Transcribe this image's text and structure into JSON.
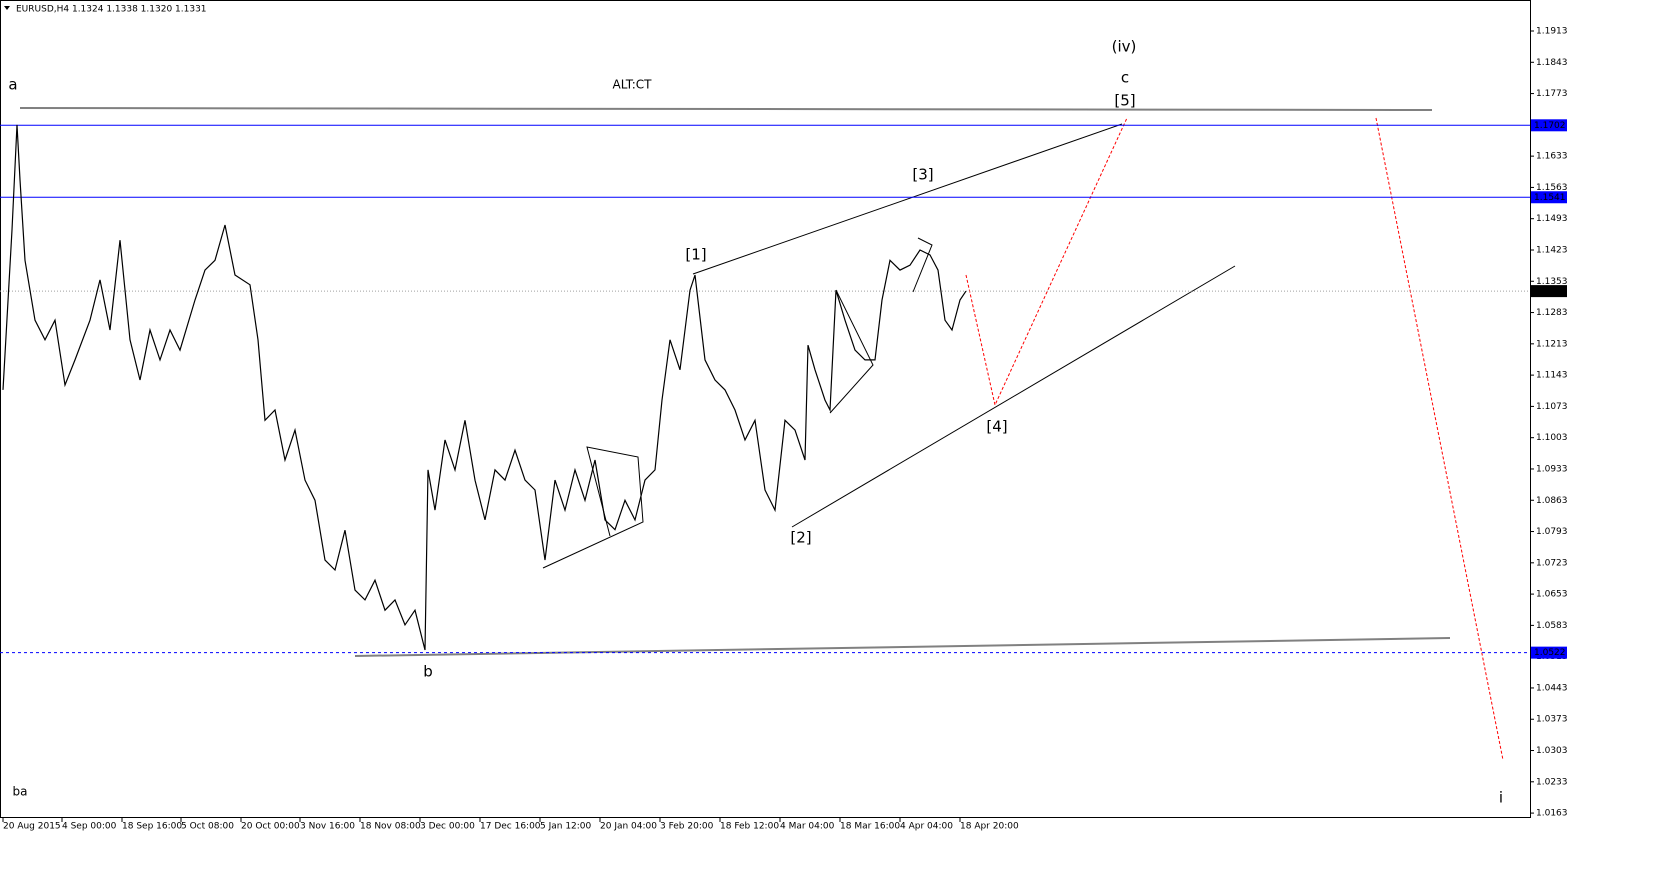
{
  "chart_data": {
    "type": "line",
    "title": "EURUSD,H4  1.1324 1.1338 1.1320 1.1331",
    "xlim": [
      0,
      1530
    ],
    "xticks": [
      {
        "value": 3,
        "label": "20 Aug 2015"
      },
      {
        "value": 62,
        "label": "4 Sep 00:00"
      },
      {
        "value": 122,
        "label": "18 Sep 16:00"
      },
      {
        "value": 181,
        "label": "5 Oct 08:00"
      },
      {
        "value": 241,
        "label": "20 Oct 00:00"
      },
      {
        "value": 300,
        "label": "3 Nov 16:00"
      },
      {
        "value": 360,
        "label": "18 Nov 08:00"
      },
      {
        "value": 420,
        "label": "3 Dec 00:00"
      },
      {
        "value": 480,
        "label": "17 Dec 16:00"
      },
      {
        "value": 540,
        "label": "5 Jan 12:00"
      },
      {
        "value": 600,
        "label": "20 Jan 04:00"
      },
      {
        "value": 660,
        "label": "3 Feb 20:00"
      },
      {
        "value": 720,
        "label": "18 Feb 12:00"
      },
      {
        "value": 780,
        "label": "4 Mar 04:00"
      },
      {
        "value": 840,
        "label": "18 Mar 16:00"
      },
      {
        "value": 900,
        "label": "4 Apr 04:00"
      },
      {
        "value": 960,
        "label": "18 Apr 20:00"
      }
    ],
    "ylim": [
      1.0152,
      1.196
    ],
    "yticks": [
      1.1913,
      1.1843,
      1.1773,
      1.1703,
      1.1633,
      1.1563,
      1.1493,
      1.1423,
      1.1353,
      1.1283,
      1.1213,
      1.1143,
      1.1073,
      1.1003,
      1.0933,
      1.0863,
      1.0793,
      1.0723,
      1.0653,
      1.0583,
      1.0513,
      1.0443,
      1.0373,
      1.0303,
      1.0233,
      1.0163
    ],
    "series": [
      {
        "color": "#000000",
        "x": [
          3,
          12,
          17,
          20,
          25,
          35,
          45,
          55,
          65,
          75,
          90,
          100,
          110,
          120,
          130,
          140,
          150,
          160,
          170,
          180,
          195,
          205,
          215,
          225,
          235,
          250,
          258,
          265,
          275,
          285,
          295,
          305,
          315,
          325,
          335,
          345,
          355,
          365,
          375,
          385,
          395,
          405,
          415,
          425,
          428,
          435,
          445,
          455,
          465,
          475,
          485,
          495,
          505,
          515,
          525,
          535,
          545,
          555,
          565,
          575,
          585,
          595,
          605,
          615,
          625,
          635,
          645,
          655,
          662,
          670,
          680,
          690,
          695,
          705,
          715,
          725,
          735,
          745,
          755,
          765,
          775,
          785,
          795,
          805,
          808,
          815,
          825,
          830,
          836,
          845,
          855,
          865,
          875,
          882,
          890,
          900,
          910,
          920,
          930,
          938,
          945,
          952,
          960,
          966
        ],
        "values": [
          1.111,
          1.1468,
          1.1703,
          1.158,
          1.14,
          1.1266,
          1.1222,
          1.1266,
          1.1121,
          1.1177,
          1.1266,
          1.1356,
          1.1244,
          1.1445,
          1.1222,
          1.1132,
          1.1244,
          1.1177,
          1.1244,
          1.1199,
          1.1311,
          1.1378,
          1.14,
          1.1479,
          1.1367,
          1.1345,
          1.1222,
          1.1042,
          1.1065,
          1.0953,
          1.102,
          1.0908,
          1.0863,
          1.0729,
          1.0707,
          1.0796,
          1.0662,
          1.064,
          1.0684,
          1.0617,
          1.064,
          1.0584,
          1.0617,
          1.0528,
          1.0931,
          1.0841,
          1.0998,
          1.0931,
          1.1042,
          1.0908,
          1.0819,
          1.0931,
          1.0908,
          1.0975,
          1.0908,
          1.0886,
          1.0729,
          1.0908,
          1.0841,
          1.0931,
          1.0863,
          1.0953,
          1.0819,
          1.0797,
          1.0863,
          1.0819,
          1.0908,
          1.0931,
          1.1087,
          1.1222,
          1.1155,
          1.1333,
          1.1367,
          1.1177,
          1.1132,
          1.111,
          1.1065,
          1.0998,
          1.1042,
          1.0886,
          1.0841,
          1.1042,
          1.102,
          1.0953,
          1.121,
          1.1155,
          1.1087,
          1.1065,
          1.1333,
          1.1266,
          1.1199,
          1.1177,
          1.1177,
          1.1311,
          1.14,
          1.1378,
          1.1389,
          1.1423,
          1.1412,
          1.1378,
          1.1266,
          1.1244,
          1.1311,
          1.1331
        ]
      }
    ],
    "levels": [
      {
        "value": 1.1702,
        "color": "#0000ff",
        "style": "solid"
      },
      {
        "value": 1.1541,
        "color": "#0000ff",
        "style": "solid"
      },
      {
        "value": 1.0522,
        "color": "#0000ff",
        "style": "dashed"
      },
      {
        "value": 1.1331,
        "color": "#a0a0a0",
        "style": "dotted"
      }
    ],
    "annotations": [
      {
        "text": "a",
        "color": "#0000ff"
      },
      {
        "text": "ALT:CT",
        "color": "#202020"
      },
      {
        "text": "(iv)",
        "color": "#008000"
      },
      {
        "text": "c",
        "color": "#0000ff"
      },
      {
        "text": "[5]",
        "color": "#ff0000"
      },
      {
        "text": "[3]",
        "color": "#ff0000"
      },
      {
        "text": "[1]",
        "color": "#ff0000"
      },
      {
        "text": "[2]",
        "color": "#ff0000"
      },
      {
        "text": "[4]",
        "color": "#ff0000"
      },
      {
        "text": "b",
        "color": "#0000ff"
      },
      {
        "text": "ba",
        "color": "#000000"
      },
      {
        "text": "i",
        "color": "#0000ff"
      }
    ]
  }
}
